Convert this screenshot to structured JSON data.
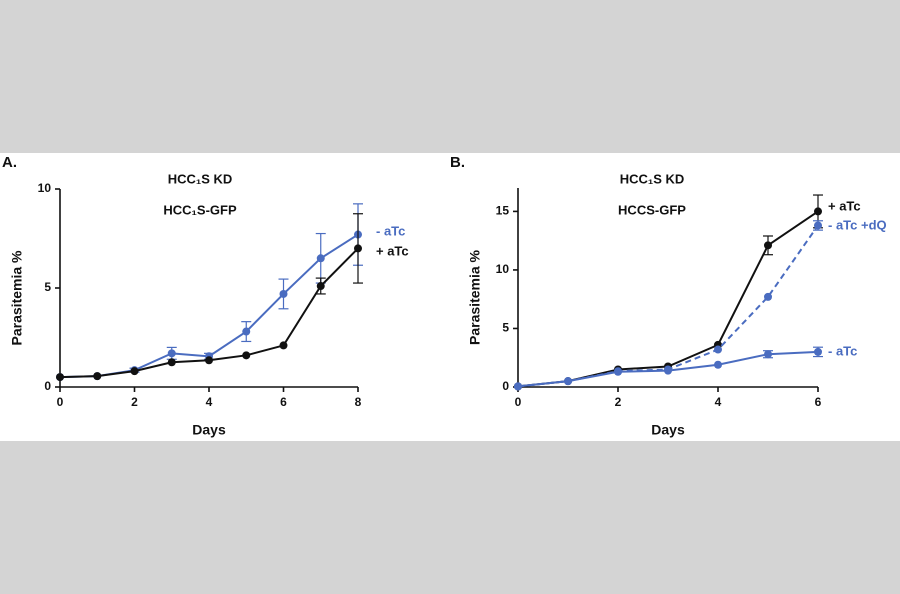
{
  "chart_data": [
    {
      "type": "line",
      "panel": "A.",
      "title": "HCC₁S KD",
      "subtitle": "HCC₁S-GFP",
      "x_label": "Days",
      "y_label": "Parasitemia %",
      "x": [
        0,
        1,
        2,
        3,
        4,
        5,
        6,
        7,
        8
      ],
      "xlim": [
        0,
        8
      ],
      "xticks": [
        0,
        2,
        4,
        6,
        8
      ],
      "ylim": [
        0,
        10
      ],
      "yticks": [
        0,
        5,
        10
      ],
      "series": [
        {
          "name": "- aTc",
          "color": "#4a6cc0",
          "dashed": false,
          "values": [
            0.5,
            0.55,
            0.85,
            1.7,
            1.55,
            2.8,
            4.7,
            6.5,
            7.7
          ],
          "errors": [
            0,
            0,
            0.1,
            0.3,
            0.15,
            0.5,
            0.75,
            1.25,
            1.55
          ]
        },
        {
          "name": "+ aTc",
          "color": "#111111",
          "dashed": false,
          "values": [
            0.5,
            0.55,
            0.8,
            1.25,
            1.35,
            1.6,
            2.1,
            5.1,
            7.0
          ],
          "errors": [
            0,
            0,
            0,
            0,
            0,
            0,
            0,
            0.4,
            1.75
          ]
        }
      ]
    },
    {
      "type": "line",
      "panel": "B.",
      "title": "HCC₁S KD",
      "subtitle": "HCCS-GFP",
      "x_label": "Days",
      "y_label": "Parasitemia %",
      "x": [
        0,
        1,
        2,
        3,
        4,
        5,
        6
      ],
      "xlim": [
        0,
        6
      ],
      "xticks": [
        0,
        2,
        4,
        6
      ],
      "ylim": [
        0,
        17
      ],
      "yticks": [
        0,
        5,
        10,
        15
      ],
      "series": [
        {
          "name": "+ aTc",
          "color": "#111111",
          "dashed": false,
          "values": [
            0.05,
            0.5,
            1.5,
            1.75,
            3.6,
            12.1,
            15.0
          ],
          "errors": [
            0,
            0,
            0,
            0,
            0,
            0.8,
            1.4
          ]
        },
        {
          "name": "- aTc +dQ",
          "color": "#4a6cc0",
          "dashed": true,
          "values": [
            0.05,
            0.5,
            1.35,
            1.5,
            3.2,
            7.7,
            13.8
          ],
          "errors": [
            0,
            0,
            0,
            0,
            0,
            0,
            0.4
          ]
        },
        {
          "name": "- aTc",
          "color": "#4a6cc0",
          "dashed": false,
          "values": [
            0.05,
            0.5,
            1.3,
            1.4,
            1.9,
            2.8,
            3.0
          ],
          "errors": [
            0,
            0,
            0,
            0,
            0,
            0.3,
            0.4
          ]
        }
      ]
    }
  ]
}
